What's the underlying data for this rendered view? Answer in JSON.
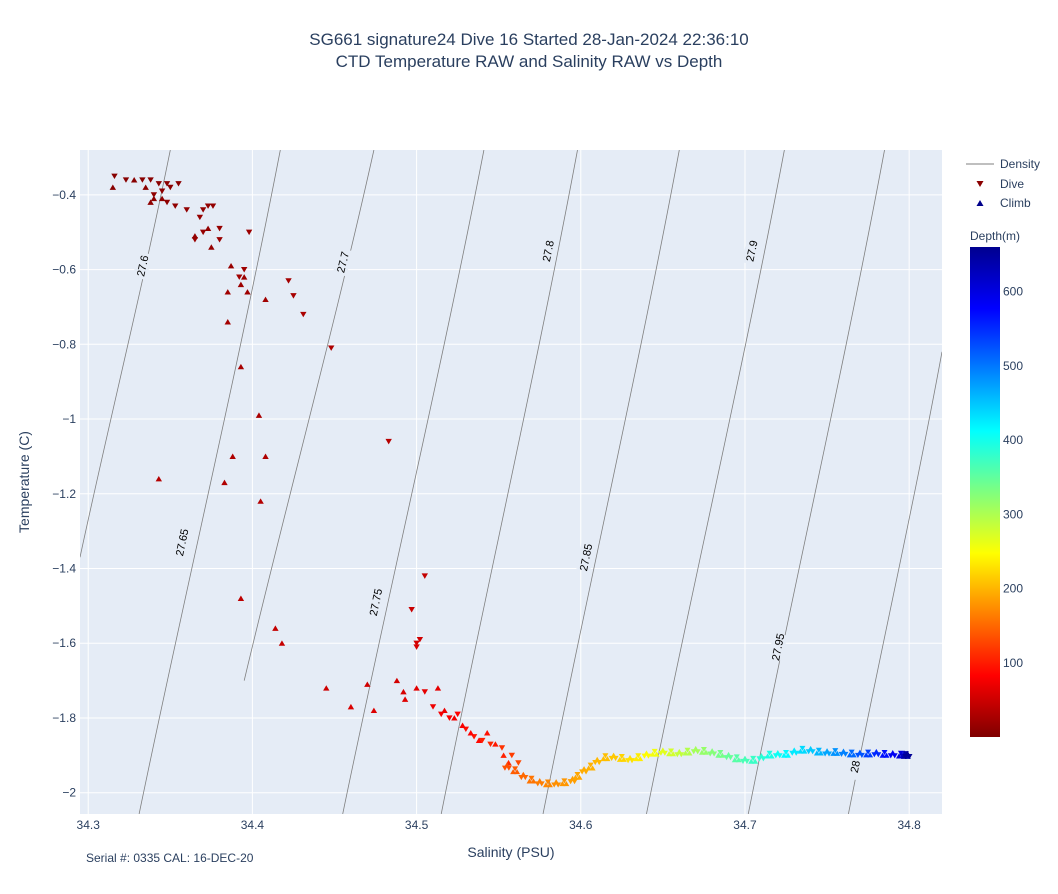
{
  "title_line1": "SG661 signature24 Dive 16 Started 28-Jan-2024 22:36:10",
  "title_line2": "CTD Temperature RAW and Salinity RAW vs Depth",
  "footer": "Serial #: 0335  CAL: 16-DEC-20",
  "chart_data": {
    "type": "scatter",
    "xlabel": "Salinity (PSU)",
    "ylabel": "Temperature (C)",
    "xlim": [
      34.295,
      34.82
    ],
    "ylim": [
      -2.057,
      -0.28
    ],
    "x_ticks": [
      34.3,
      34.4,
      34.5,
      34.6,
      34.7,
      34.8
    ],
    "x_tick_labels": [
      "34.3",
      "34.4",
      "34.5",
      "34.6",
      "34.7",
      "34.8"
    ],
    "y_ticks": [
      -0.4,
      -0.6,
      -0.8,
      -1.0,
      -1.2,
      -1.4,
      -1.6,
      -1.8,
      -2.0
    ],
    "y_tick_labels": [
      "−0.4",
      "−0.6",
      "−0.8",
      "−1",
      "−1.2",
      "−1.4",
      "−1.6",
      "−1.8",
      "−2"
    ],
    "grid": true,
    "legend": [
      {
        "name": "Density",
        "symbol": "line",
        "color": "#7f7f7f"
      },
      {
        "name": "Dive",
        "symbol": "triangle-down",
        "color": "#8b0000"
      },
      {
        "name": "Climb",
        "symbol": "triangle-up",
        "color": "#00008b"
      }
    ],
    "legend_position": "right",
    "colorbar": {
      "title": "Depth(m)",
      "range": [
        0,
        660
      ],
      "ticks": [
        100,
        200,
        300,
        400,
        500,
        600
      ],
      "tick_labels": [
        "100",
        "200",
        "300",
        "400",
        "500",
        "600"
      ],
      "colors": [
        "#7f0000",
        "#ff0000",
        "#ff7f00",
        "#ffff00",
        "#7fff7f",
        "#00ffff",
        "#007fff",
        "#0000ff",
        "#00008f"
      ]
    },
    "density_contours": [
      {
        "label": "27.6",
        "top": [
          34.35,
          -0.28
        ],
        "bottom": [
          34.295,
          -1.37
        ],
        "label_at": [
          34.333,
          -0.59
        ]
      },
      {
        "label": "27.65",
        "top": [
          34.417,
          -0.28
        ],
        "bottom": [
          34.331,
          -2.057
        ],
        "label_at": [
          34.357,
          -1.33
        ]
      },
      {
        "label": "27.7",
        "top": [
          34.474,
          -0.28
        ],
        "bottom": [
          34.395,
          -1.7
        ],
        "label_at": [
          34.455,
          -0.58
        ]
      },
      {
        "label": "27.75",
        "top": [
          34.541,
          -0.28
        ],
        "bottom": [
          34.455,
          -2.057
        ],
        "label_at": [
          34.475,
          -1.49
        ]
      },
      {
        "label": "27.8",
        "top": [
          34.598,
          -0.28
        ],
        "bottom": [
          34.515,
          -2.057
        ],
        "label_at": [
          34.58,
          -0.55
        ]
      },
      {
        "label": "27.85",
        "top": [
          34.66,
          -0.28
        ],
        "bottom": [
          34.577,
          -2.057
        ],
        "label_at": [
          34.603,
          -1.37
        ]
      },
      {
        "label": "27.9",
        "top": [
          34.724,
          -0.28
        ],
        "bottom": [
          34.64,
          -2.057
        ],
        "label_at": [
          34.704,
          -0.55
        ]
      },
      {
        "label": "27.95",
        "top": [
          34.785,
          -0.28
        ],
        "bottom": [
          34.702,
          -2.057
        ],
        "label_at": [
          34.72,
          -1.61
        ]
      },
      {
        "label": "28",
        "top": [
          34.82,
          -0.82
        ],
        "bottom": [
          34.763,
          -2.057
        ],
        "label_at": [
          34.767,
          -1.93
        ]
      }
    ],
    "series": [
      {
        "name": "Dive",
        "marker": "triangle-down",
        "points": [
          [
            34.316,
            -0.35,
            5
          ],
          [
            34.323,
            -0.36,
            5
          ],
          [
            34.333,
            -0.36,
            6
          ],
          [
            34.338,
            -0.36,
            6
          ],
          [
            34.343,
            -0.37,
            7
          ],
          [
            34.348,
            -0.37,
            7
          ],
          [
            34.35,
            -0.38,
            8
          ],
          [
            34.355,
            -0.37,
            8
          ],
          [
            34.345,
            -0.39,
            9
          ],
          [
            34.34,
            -0.4,
            10
          ],
          [
            34.348,
            -0.42,
            10
          ],
          [
            34.353,
            -0.43,
            11
          ],
          [
            34.36,
            -0.44,
            12
          ],
          [
            34.37,
            -0.44,
            12
          ],
          [
            34.373,
            -0.43,
            13
          ],
          [
            34.376,
            -0.43,
            13
          ],
          [
            34.368,
            -0.46,
            14
          ],
          [
            34.38,
            -0.49,
            15
          ],
          [
            34.37,
            -0.5,
            15
          ],
          [
            34.365,
            -0.52,
            16
          ],
          [
            34.38,
            -0.52,
            16
          ],
          [
            34.398,
            -0.5,
            18
          ],
          [
            34.395,
            -0.6,
            20
          ],
          [
            34.392,
            -0.62,
            22
          ],
          [
            34.422,
            -0.63,
            24
          ],
          [
            34.425,
            -0.67,
            26
          ],
          [
            34.431,
            -0.72,
            28
          ],
          [
            34.448,
            -0.81,
            30
          ],
          [
            34.483,
            -1.06,
            36
          ],
          [
            34.505,
            -1.42,
            44
          ],
          [
            34.497,
            -1.51,
            48
          ],
          [
            34.502,
            -1.59,
            52
          ],
          [
            34.5,
            -1.6,
            54
          ],
          [
            34.5,
            -1.61,
            56
          ],
          [
            34.505,
            -1.73,
            66
          ],
          [
            34.51,
            -1.77,
            72
          ],
          [
            34.515,
            -1.79,
            76
          ],
          [
            34.52,
            -1.8,
            80
          ],
          [
            34.525,
            -1.79,
            84
          ],
          [
            34.53,
            -1.83,
            90
          ],
          [
            34.535,
            -1.85,
            96
          ],
          [
            34.54,
            -1.86,
            102
          ],
          [
            34.545,
            -1.87,
            108
          ],
          [
            34.552,
            -1.88,
            115
          ],
          [
            34.558,
            -1.9,
            122
          ],
          [
            34.562,
            -1.92,
            130
          ]
        ]
      },
      {
        "name": "Climb",
        "marker": "triangle-up",
        "points": [
          [
            34.315,
            -0.38,
            5
          ],
          [
            34.328,
            -0.36,
            6
          ],
          [
            34.335,
            -0.38,
            7
          ],
          [
            34.34,
            -0.41,
            8
          ],
          [
            34.345,
            -0.41,
            9
          ],
          [
            34.338,
            -0.42,
            10
          ],
          [
            34.373,
            -0.49,
            12
          ],
          [
            34.365,
            -0.51,
            13
          ],
          [
            34.375,
            -0.54,
            14
          ],
          [
            34.387,
            -0.59,
            16
          ],
          [
            34.395,
            -0.62,
            18
          ],
          [
            34.393,
            -0.64,
            19
          ],
          [
            34.397,
            -0.66,
            20
          ],
          [
            34.385,
            -0.66,
            21
          ],
          [
            34.408,
            -0.68,
            22
          ],
          [
            34.385,
            -0.74,
            24
          ],
          [
            34.393,
            -0.86,
            26
          ],
          [
            34.404,
            -0.99,
            28
          ],
          [
            34.408,
            -1.1,
            30
          ],
          [
            34.388,
            -1.1,
            31
          ],
          [
            34.383,
            -1.17,
            32
          ],
          [
            34.405,
            -1.22,
            34
          ],
          [
            34.343,
            -1.16,
            35
          ],
          [
            34.393,
            -1.48,
            40
          ],
          [
            34.414,
            -1.56,
            44
          ],
          [
            34.418,
            -1.6,
            46
          ],
          [
            34.445,
            -1.72,
            50
          ],
          [
            34.47,
            -1.71,
            52
          ],
          [
            34.488,
            -1.7,
            54
          ],
          [
            34.492,
            -1.73,
            56
          ],
          [
            34.46,
            -1.77,
            58
          ],
          [
            34.474,
            -1.78,
            60
          ],
          [
            34.493,
            -1.75,
            62
          ],
          [
            34.5,
            -1.72,
            64
          ],
          [
            34.513,
            -1.72,
            66
          ],
          [
            34.517,
            -1.78,
            70
          ],
          [
            34.523,
            -1.8,
            74
          ],
          [
            34.528,
            -1.82,
            78
          ],
          [
            34.533,
            -1.84,
            84
          ],
          [
            34.538,
            -1.86,
            88
          ],
          [
            34.543,
            -1.84,
            92
          ],
          [
            34.548,
            -1.87,
            98
          ],
          [
            34.553,
            -1.9,
            104
          ],
          [
            34.556,
            -1.92,
            110
          ]
        ]
      }
    ],
    "profile": [
      [
        34.555,
        -1.93,
        135
      ],
      [
        34.56,
        -1.94,
        142
      ],
      [
        34.565,
        -1.955,
        150
      ],
      [
        34.57,
        -1.965,
        158
      ],
      [
        34.575,
        -1.972,
        164
      ],
      [
        34.58,
        -1.975,
        170
      ],
      [
        34.585,
        -1.975,
        175
      ],
      [
        34.59,
        -1.972,
        180
      ],
      [
        34.595,
        -1.966,
        185
      ],
      [
        34.598,
        -1.955,
        190
      ],
      [
        34.602,
        -1.94,
        194
      ],
      [
        34.606,
        -1.93,
        198
      ],
      [
        34.61,
        -1.915,
        202
      ],
      [
        34.615,
        -1.905,
        206
      ],
      [
        34.62,
        -1.904,
        212
      ],
      [
        34.625,
        -1.907,
        220
      ],
      [
        34.63,
        -1.91,
        228
      ],
      [
        34.635,
        -1.905,
        236
      ],
      [
        34.64,
        -1.898,
        246
      ],
      [
        34.645,
        -1.893,
        256
      ],
      [
        34.65,
        -1.89,
        266
      ],
      [
        34.655,
        -1.892,
        276
      ],
      [
        34.66,
        -1.894,
        286
      ],
      [
        34.665,
        -1.89,
        296
      ],
      [
        34.67,
        -1.886,
        306
      ],
      [
        34.675,
        -1.888,
        316
      ],
      [
        34.68,
        -1.892,
        326
      ],
      [
        34.685,
        -1.896,
        336
      ],
      [
        34.69,
        -1.902,
        346
      ],
      [
        34.695,
        -1.908,
        356
      ],
      [
        34.7,
        -1.912,
        366
      ],
      [
        34.705,
        -1.912,
        376
      ],
      [
        34.71,
        -1.905,
        386
      ],
      [
        34.715,
        -1.898,
        396
      ],
      [
        34.72,
        -1.897,
        406
      ],
      [
        34.725,
        -1.896,
        416
      ],
      [
        34.73,
        -1.89,
        426
      ],
      [
        34.735,
        -1.885,
        436
      ],
      [
        34.74,
        -1.886,
        446
      ],
      [
        34.745,
        -1.89,
        458
      ],
      [
        34.75,
        -1.892,
        470
      ],
      [
        34.755,
        -1.891,
        482
      ],
      [
        34.76,
        -1.893,
        494
      ],
      [
        34.765,
        -1.895,
        508
      ],
      [
        34.77,
        -1.896,
        522
      ],
      [
        34.775,
        -1.895,
        536
      ],
      [
        34.78,
        -1.894,
        552
      ],
      [
        34.785,
        -1.896,
        568
      ],
      [
        34.79,
        -1.897,
        586
      ],
      [
        34.795,
        -1.898,
        604
      ],
      [
        34.797,
        -1.898,
        620
      ],
      [
        34.798,
        -1.899,
        640
      ],
      [
        34.799,
        -1.899,
        655
      ]
    ]
  }
}
